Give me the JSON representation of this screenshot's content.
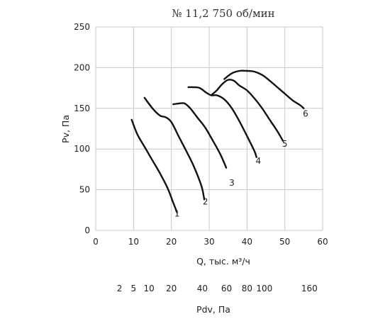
{
  "chart_data": {
    "type": "line",
    "title": "№ 11,2  750 об/мин",
    "xlabel": "Q, тыс. м³/ч",
    "ylabel": "Pv, Па",
    "secondary_xlabel": "Pdv, Па",
    "xlim": [
      0,
      60
    ],
    "ylim": [
      0,
      250
    ],
    "x_ticks": [
      0,
      10,
      20,
      30,
      40,
      50,
      60
    ],
    "y_ticks": [
      0,
      50,
      100,
      150,
      200,
      250
    ],
    "secondary_ticks": [
      {
        "label": "2",
        "q": 6.3
      },
      {
        "label": "5",
        "q": 10
      },
      {
        "label": "10",
        "q": 14.1
      },
      {
        "label": "20",
        "q": 20
      },
      {
        "label": "40",
        "q": 28.2
      },
      {
        "label": "60",
        "q": 34.6
      },
      {
        "label": "80",
        "q": 40
      },
      {
        "label": "100",
        "q": 44.6
      },
      {
        "label": "160",
        "q": 56.5
      }
    ],
    "grid": true,
    "series": [
      {
        "name": "1",
        "x": [
          9.5,
          11,
          13,
          15,
          17,
          19,
          20.5,
          21.5
        ],
        "y": [
          136,
          118,
          102,
          86,
          70,
          52,
          34,
          22
        ]
      },
      {
        "name": "2",
        "x": [
          12.9,
          15,
          17,
          18.5,
          20,
          22,
          24,
          26,
          28,
          28.7
        ],
        "y": [
          163,
          150,
          141,
          139,
          133,
          115,
          97,
          78,
          54,
          38
        ]
      },
      {
        "name": "3",
        "x": [
          20.5,
          22,
          23.5,
          25,
          27,
          29,
          31,
          33,
          34.5
        ],
        "y": [
          155,
          156,
          156,
          150,
          138,
          126,
          110,
          93,
          77
        ]
      },
      {
        "name": "4",
        "x": [
          24.5,
          26,
          27.5,
          29,
          30.5,
          32,
          34,
          36,
          38,
          40,
          42,
          42.5
        ],
        "y": [
          176,
          176,
          175,
          170,
          166,
          166,
          161,
          150,
          134,
          116,
          97,
          90
        ]
      },
      {
        "name": "5",
        "x": [
          30.5,
          32,
          33.5,
          35,
          36.5,
          38,
          40,
          42,
          44,
          46,
          48,
          49.5
        ],
        "y": [
          166,
          172,
          180,
          185,
          184,
          178,
          172,
          162,
          150,
          136,
          122,
          110
        ]
      },
      {
        "name": "6",
        "x": [
          34,
          36,
          38,
          40,
          42,
          44,
          46,
          48,
          50,
          52,
          54,
          55
        ],
        "y": [
          186,
          193,
          196,
          196,
          195,
          191,
          184,
          176,
          168,
          160,
          154,
          150
        ]
      }
    ],
    "annotations": [
      {
        "text": "1",
        "x": 21.5,
        "y": 17
      },
      {
        "text": "2",
        "x": 29,
        "y": 32
      },
      {
        "text": "3",
        "x": 36,
        "y": 55
      },
      {
        "text": "4",
        "x": 43,
        "y": 82
      },
      {
        "text": "5",
        "x": 50,
        "y": 103
      },
      {
        "text": "6",
        "x": 55.5,
        "y": 140
      }
    ]
  }
}
